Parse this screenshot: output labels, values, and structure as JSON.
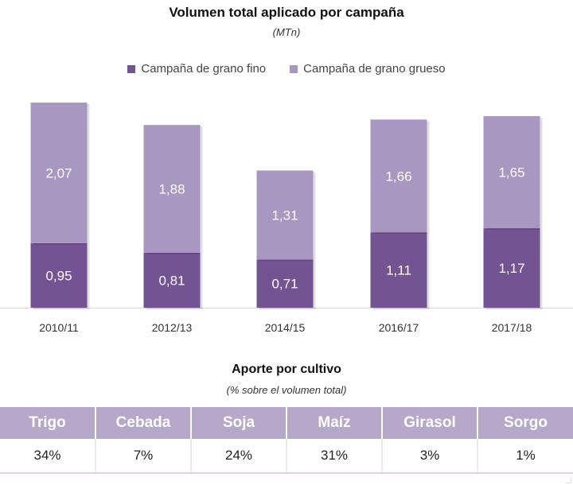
{
  "chart_data": {
    "type": "bar",
    "stacked": true,
    "title": "Volumen total aplicado por campaña",
    "subtitle": "(MTn)",
    "categories": [
      "2010/11",
      "2012/13",
      "2014/15",
      "2016/17",
      "2017/18"
    ],
    "series": [
      {
        "name": "Campaña de grano fino",
        "values": [
          0.95,
          0.81,
          0.71,
          1.11,
          1.17
        ],
        "labels": [
          "0,95",
          "0,81",
          "0,71",
          "1,11",
          "1,17"
        ],
        "color": "#735391",
        "label_color": "#ffffff"
      },
      {
        "name": "Campaña de grano grueso",
        "values": [
          2.07,
          1.88,
          1.31,
          1.66,
          1.65
        ],
        "labels": [
          "2,07",
          "1,88",
          "1,31",
          "1,66",
          "1,65"
        ],
        "color": "#a898c1",
        "label_color": "#ffffff"
      }
    ],
    "legend_position": "top-center",
    "ylim": [
      0,
      3.02
    ],
    "grid": false
  },
  "section": {
    "title": "Aporte por cultivo",
    "subtitle": "(% sobre el volumen total)"
  },
  "crops": [
    {
      "name": "Trigo",
      "share": "34%"
    },
    {
      "name": "Cebada",
      "share": "7%"
    },
    {
      "name": "Soja",
      "share": "24%"
    },
    {
      "name": "Maíz",
      "share": "31%"
    },
    {
      "name": "Girasol",
      "share": "3%"
    },
    {
      "name": "Sorgo",
      "share": "1%"
    }
  ],
  "colors": {
    "header_bg": "#b7a7cb",
    "axis": "#d9d9d9"
  }
}
